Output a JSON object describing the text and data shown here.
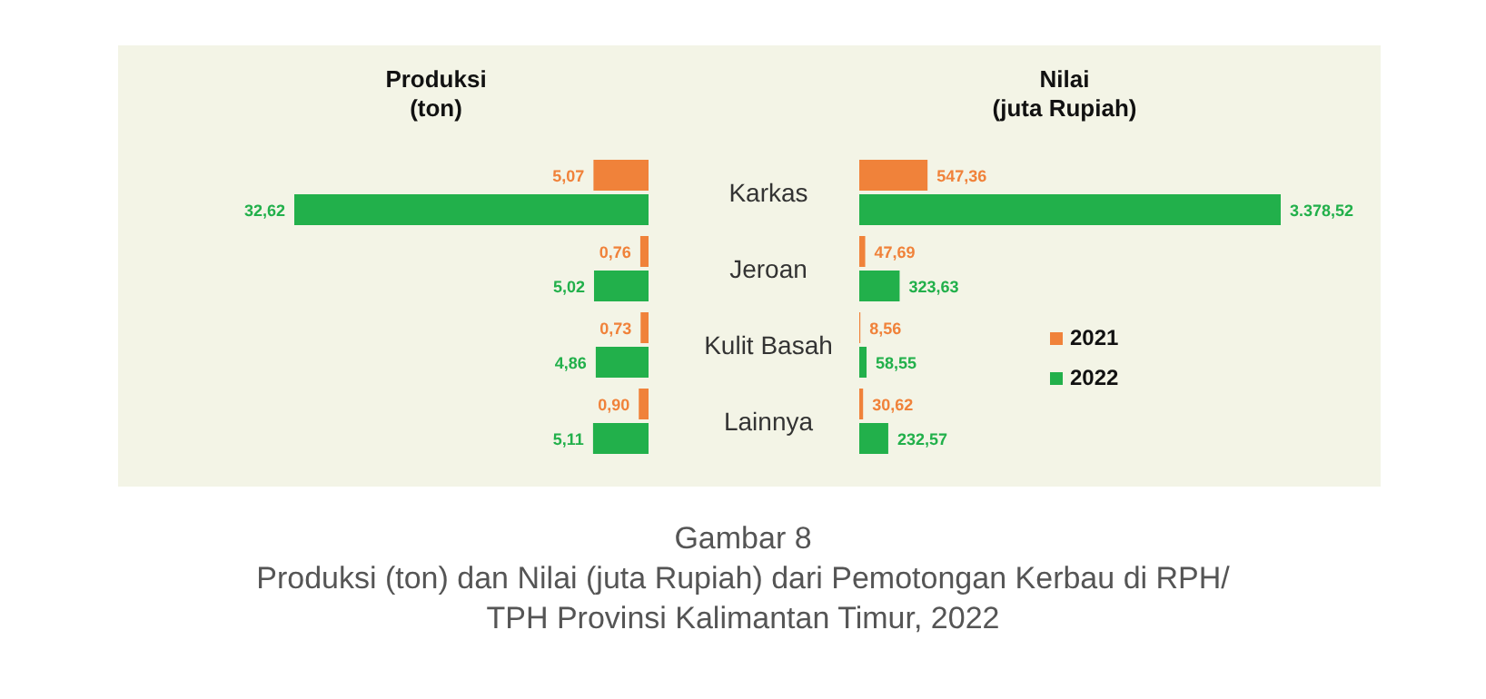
{
  "chart_data": [
    {
      "type": "bar",
      "orientation": "horizontal",
      "title": "Produksi\n(ton)",
      "categories": [
        "Karkas",
        "Jeroan",
        "Kulit Basah",
        "Lainnya"
      ],
      "tick_labels": "y",
      "data_labels": true,
      "series": [
        {
          "color": "#f0823a",
          "values": [
            5.07,
            0.76,
            0.73,
            0.9
          ],
          "value_labels": [
            "5,07",
            "0,76",
            "0,73",
            "0,90"
          ]
        },
        {
          "color": "#22b04b",
          "values": [
            32.62,
            5.02,
            4.86,
            5.11
          ],
          "value_labels": [
            "32,62",
            "5,02",
            "4,86",
            "5,11"
          ]
        }
      ],
      "annotations": [
        "Gambar 8",
        "Produksi (ton) dan Nilai (juta Rupiah) dari Pemotongan Kerbau di RPH/\nTPH Provinsi Kalimantan Timur, 2022"
      ]
    },
    {
      "type": "bar",
      "orientation": "horizontal",
      "title": "Nilai\n(juta Rupiah)",
      "tick_labels": false,
      "data_labels": true,
      "legend": "right",
      "series": [
        {
          "name": "2021",
          "color": "#f0823a",
          "values": [
            547.36,
            47.69,
            8.56,
            30.62
          ],
          "value_labels": [
            "547,36",
            "47,69",
            "8,56",
            "30,62"
          ]
        },
        {
          "name": "2022",
          "color": "#22b04b",
          "values": [
            3378.52,
            323.63,
            58.55,
            232.57
          ],
          "value_labels": [
            "3.378,52",
            "323,63",
            "58,55",
            "232,57"
          ]
        }
      ]
    }
  ]
}
